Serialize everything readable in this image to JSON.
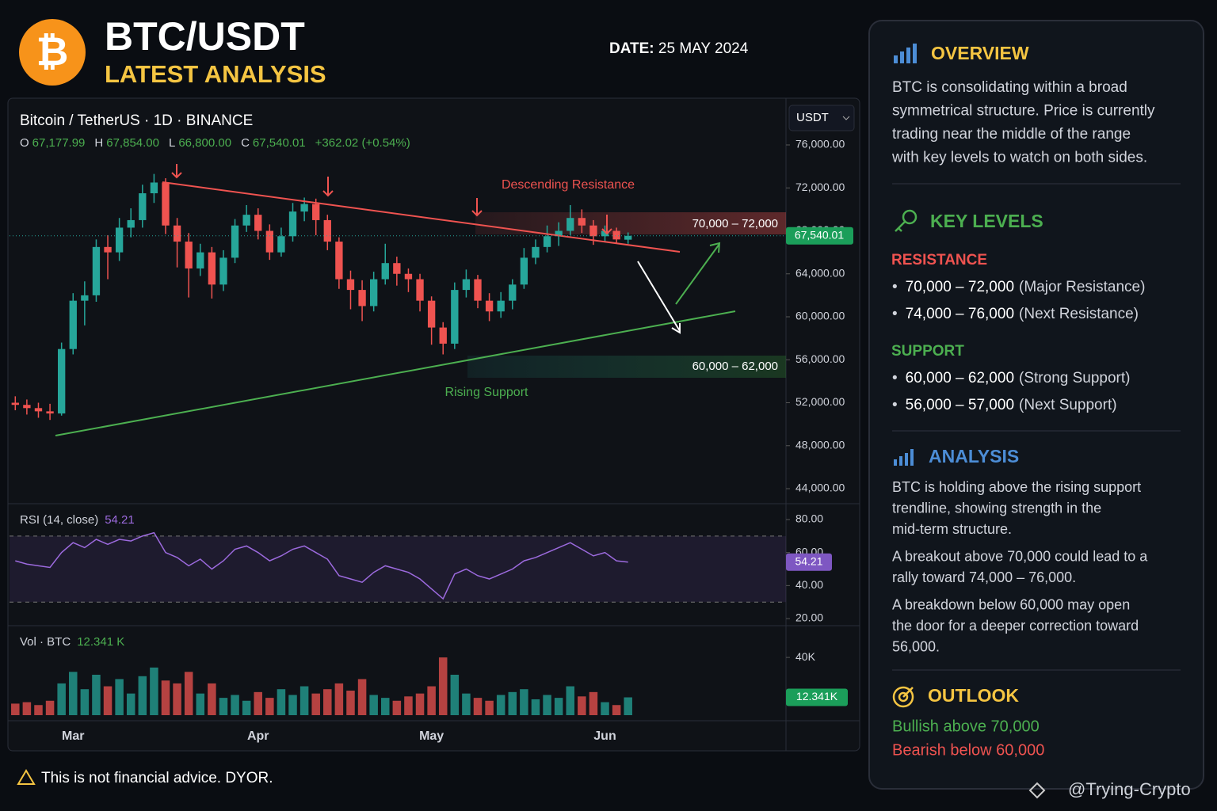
{
  "header": {
    "title": "BTC/USDT",
    "subtitle": "LATEST ANALYSIS",
    "date_label": "DATE:",
    "date": "25 MAY 2024"
  },
  "chart_data": [
    {
      "type": "candlestick",
      "title": "Bitcoin / TetherUS · 1D · BINANCE",
      "ohlc": [
        {
          "key": "O",
          "value": "67,177.99"
        },
        {
          "key": "H",
          "value": "67,854.00"
        },
        {
          "key": "L",
          "value": "66,800.00"
        },
        {
          "key": "C",
          "value": "67,540.01"
        }
      ],
      "change": "+362.02 (+0.54%)",
      "currency": "USDT",
      "categories": [
        null,
        null,
        null,
        null,
        null,
        "Mar",
        null,
        null,
        null,
        null,
        null,
        null,
        null,
        null,
        null,
        null,
        null,
        null,
        null,
        null,
        null,
        "Apr",
        null,
        null,
        null,
        null,
        null,
        null,
        null,
        null,
        null,
        null,
        null,
        null,
        null,
        null,
        "May",
        null,
        null,
        null,
        null,
        null,
        null,
        null,
        null,
        null,
        null,
        null,
        null,
        null,
        null,
        "Jun",
        null,
        null
      ],
      "open": [
        52000,
        51800,
        51500,
        51200,
        51000,
        57000,
        61500,
        62000,
        66500,
        66000,
        68300,
        69000,
        71500,
        72500,
        68500,
        67000,
        64500,
        66000,
        63000,
        65500,
        68500,
        69500,
        68000,
        66000,
        67500,
        69800,
        70500,
        69000,
        67000,
        63500,
        62500,
        61000,
        63500,
        65000,
        64000,
        63500,
        61500,
        59000,
        57500,
        62500,
        63500,
        61500,
        60500,
        61500,
        63000,
        65500,
        66500,
        67500,
        68000,
        69200,
        68500,
        67500,
        68000,
        67177.99
      ],
      "high": [
        52600,
        52300,
        52000,
        51900,
        57600,
        62200,
        63300,
        67200,
        67600,
        69200,
        70100,
        72300,
        73300,
        72900,
        69200,
        67800,
        66800,
        66500,
        66200,
        69100,
        70400,
        70100,
        68600,
        68300,
        70600,
        71100,
        71000,
        69500,
        67400,
        64300,
        63400,
        64200,
        66800,
        65600,
        64500,
        64000,
        61900,
        59500,
        63200,
        64400,
        63900,
        62200,
        62300,
        63500,
        66400,
        67200,
        68500,
        68800,
        70400,
        70000,
        69000,
        68500,
        68300,
        67854
      ],
      "low": [
        51300,
        50900,
        50600,
        50400,
        50800,
        56500,
        59200,
        61400,
        63500,
        65200,
        67400,
        68300,
        70600,
        67700,
        64600,
        61800,
        63800,
        61700,
        62400,
        65000,
        67900,
        67200,
        65300,
        65600,
        67000,
        68900,
        67600,
        66200,
        62600,
        60700,
        59600,
        60500,
        63000,
        62900,
        62300,
        60500,
        57400,
        56500,
        57000,
        61800,
        60800,
        59600,
        59900,
        60700,
        62600,
        64900,
        66000,
        66600,
        67600,
        67800,
        66700,
        67000,
        66900,
        66800
      ],
      "close": [
        51800,
        51500,
        51200,
        51000,
        57000,
        61500,
        62000,
        66500,
        66000,
        68300,
        69000,
        71500,
        72500,
        68500,
        67000,
        64500,
        66000,
        63000,
        65500,
        68500,
        69500,
        68000,
        66000,
        67500,
        69800,
        70500,
        69000,
        67000,
        63500,
        62500,
        61000,
        63500,
        65000,
        64000,
        63500,
        61500,
        59000,
        57500,
        62500,
        63500,
        61500,
        60500,
        61500,
        63000,
        65500,
        66500,
        67500,
        68000,
        69200,
        68500,
        67500,
        68000,
        67200,
        67540.01
      ],
      "up_color": "#26a69a",
      "down_color": "#ef5350",
      "last_price": 67540.01,
      "last_price_label": "67,540.01",
      "ylim": [
        42600,
        80350
      ],
      "yticks": [
        {
          "value": 44000,
          "label": "44,000.00"
        },
        {
          "value": 48000,
          "label": "48,000.00"
        },
        {
          "value": 52000,
          "label": "52,000.00"
        },
        {
          "value": 56000,
          "label": "56,000.00"
        },
        {
          "value": 60000,
          "label": "60,000.00"
        },
        {
          "value": 64000,
          "label": "64,000.00"
        },
        {
          "value": 68000,
          "label": "68,000.00"
        },
        {
          "value": 72000,
          "label": "72,000.00"
        },
        {
          "value": 76000,
          "label": "76,000.00"
        }
      ],
      "annotations": {
        "resistance": "Descending Resistance",
        "support": "Rising Support",
        "resistance_zone": "70,000 – 72,000",
        "support_zone": "60,000 – 62,000"
      }
    },
    {
      "type": "line",
      "title": "RSI (14, close)",
      "last_value": 54.21,
      "color": "#9c6ade",
      "bands": [
        30,
        70
      ],
      "values": [
        55,
        53,
        52,
        51,
        60,
        66,
        63,
        68,
        65,
        68,
        67,
        70,
        72,
        60,
        57,
        52,
        56,
        50,
        55,
        62,
        64,
        60,
        55,
        58,
        62,
        64,
        60,
        56,
        46,
        44,
        42,
        48,
        52,
        50,
        48,
        44,
        38,
        32,
        47,
        50,
        46,
        44,
        47,
        50,
        55,
        57,
        60,
        63,
        66,
        62,
        58,
        60,
        55,
        54.21
      ],
      "ylim": [
        15.7,
        89.6
      ],
      "yticks": [
        {
          "value": 20,
          "label": "20.00"
        },
        {
          "value": 40,
          "label": "40.00"
        },
        {
          "value": 60,
          "label": "60.00"
        },
        {
          "value": 80,
          "label": "80.00"
        }
      ]
    },
    {
      "type": "bar",
      "title": "Vol · BTC",
      "last_value_label": "12.341 K",
      "last_tag_label": "12.341K",
      "values": [
        8000,
        9000,
        7000,
        10000,
        22000,
        30000,
        18000,
        28000,
        20000,
        25000,
        15000,
        27000,
        33000,
        24000,
        22000,
        30000,
        15000,
        22000,
        12000,
        14000,
        10000,
        16000,
        12000,
        18000,
        14000,
        20000,
        15000,
        18000,
        22000,
        17000,
        25000,
        14000,
        12000,
        10000,
        13000,
        15000,
        20000,
        40000,
        28000,
        15000,
        12000,
        10000,
        14000,
        16000,
        18000,
        11000,
        14000,
        12000,
        20000,
        13000,
        16000,
        9000,
        7000,
        12341
      ],
      "up_color": "#26a69a",
      "down_color": "#ef5350",
      "ylim": [
        0,
        62000
      ],
      "yticks": [
        {
          "value": 40000,
          "label": "40K"
        }
      ]
    }
  ],
  "sidebar": {
    "overview": {
      "title": "OVERVIEW",
      "lines": [
        "BTC is consolidating within a broad",
        "symmetrical structure. Price is currently",
        "trading near the middle of the range",
        "with key levels to watch on both sides."
      ]
    },
    "key_levels": {
      "title": "KEY LEVELS",
      "resistance": {
        "title": "RESISTANCE",
        "items": [
          {
            "range": "70,000 – 72,000",
            "note": "(Major Resistance)"
          },
          {
            "range": "74,000 – 76,000",
            "note": "(Next Resistance)"
          }
        ]
      },
      "support": {
        "title": "SUPPORT",
        "items": [
          {
            "range": "60,000 – 62,000",
            "note": "(Strong Support)"
          },
          {
            "range": "56,000 – 57,000",
            "note": "(Next Support)"
          }
        ]
      }
    },
    "analysis": {
      "title": "ANALYSIS",
      "paragraphs": [
        [
          "BTC is holding above the rising support",
          "trendline, showing strength in the",
          "mid-term structure."
        ],
        [
          "A breakout above 70,000 could lead to a",
          "rally toward 74,000 – 76,000."
        ],
        [
          "A breakdown below 60,000 may open",
          "the door for a deeper correction toward",
          "56,000."
        ]
      ]
    },
    "outlook": {
      "title": "OUTLOOK",
      "bullish": "Bullish above 70,000",
      "bearish": "Bearish below 60,000"
    }
  },
  "footer": {
    "disclaimer": "This is not financial advice. DYOR.",
    "watermark": "@Trying-Crypto"
  }
}
